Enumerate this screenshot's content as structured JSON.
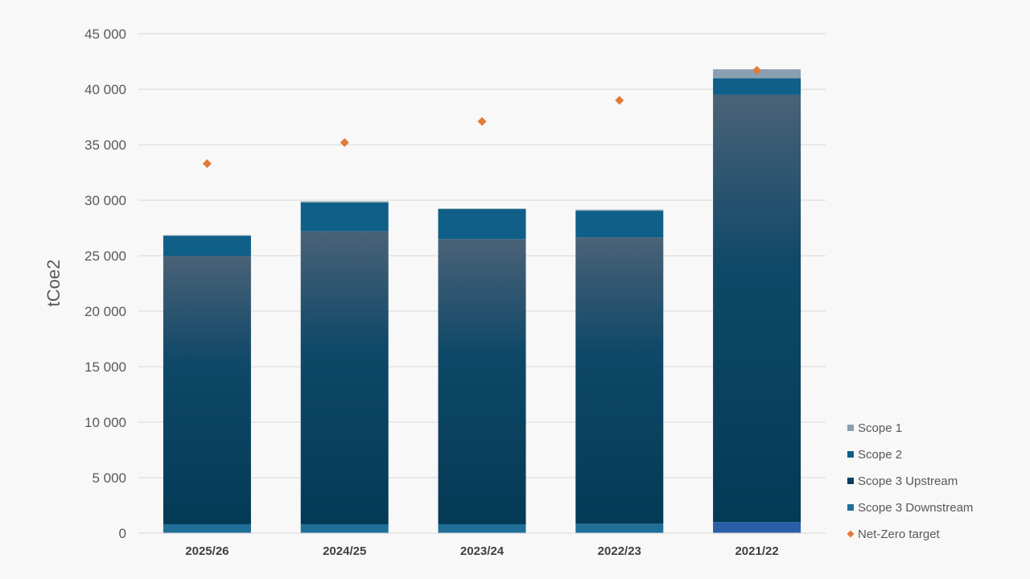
{
  "chart_data": {
    "type": "bar",
    "stacked": true,
    "title": "",
    "xlabel": "",
    "ylabel": "tCoe2",
    "ylim": [
      0,
      45000
    ],
    "yticks": [
      0,
      5000,
      10000,
      15000,
      20000,
      25000,
      30000,
      35000,
      40000,
      45000
    ],
    "ytick_labels": [
      "0",
      "5 000",
      "10 000",
      "15 000",
      "20 000",
      "25 000",
      "30 000",
      "35 000",
      "40 000",
      "45 000"
    ],
    "grid": true,
    "legend_position": "right-bottom",
    "categories": [
      "2025/26",
      "2024/25",
      "2023/24",
      "2022/23",
      "2021/22"
    ],
    "series": [
      {
        "name": "Scope 3 Downstream",
        "kind": "bar",
        "color": "#1f6f99",
        "values": [
          800,
          800,
          800,
          850,
          1000
        ]
      },
      {
        "name": "Scope 3 Upstream",
        "kind": "bar",
        "color": "#0b3d5c",
        "values": [
          24200,
          26400,
          25700,
          25800,
          38500
        ]
      },
      {
        "name": "Scope 2",
        "kind": "bar",
        "color": "#0f5f88",
        "values": [
          1800,
          2600,
          2700,
          2400,
          1500
        ]
      },
      {
        "name": "Scope 1",
        "kind": "bar",
        "color": "#8aa0b2",
        "values": [
          50,
          100,
          50,
          100,
          800
        ]
      },
      {
        "name": "Net-Zero target",
        "kind": "marker",
        "color": "#e07b39",
        "values": [
          33300,
          35200,
          37100,
          39000,
          41700
        ]
      }
    ],
    "legend_order": [
      "Scope 1",
      "Scope 2",
      "Scope 3 Upstream",
      "Scope 3 Downstream",
      "Net-Zero target"
    ]
  }
}
